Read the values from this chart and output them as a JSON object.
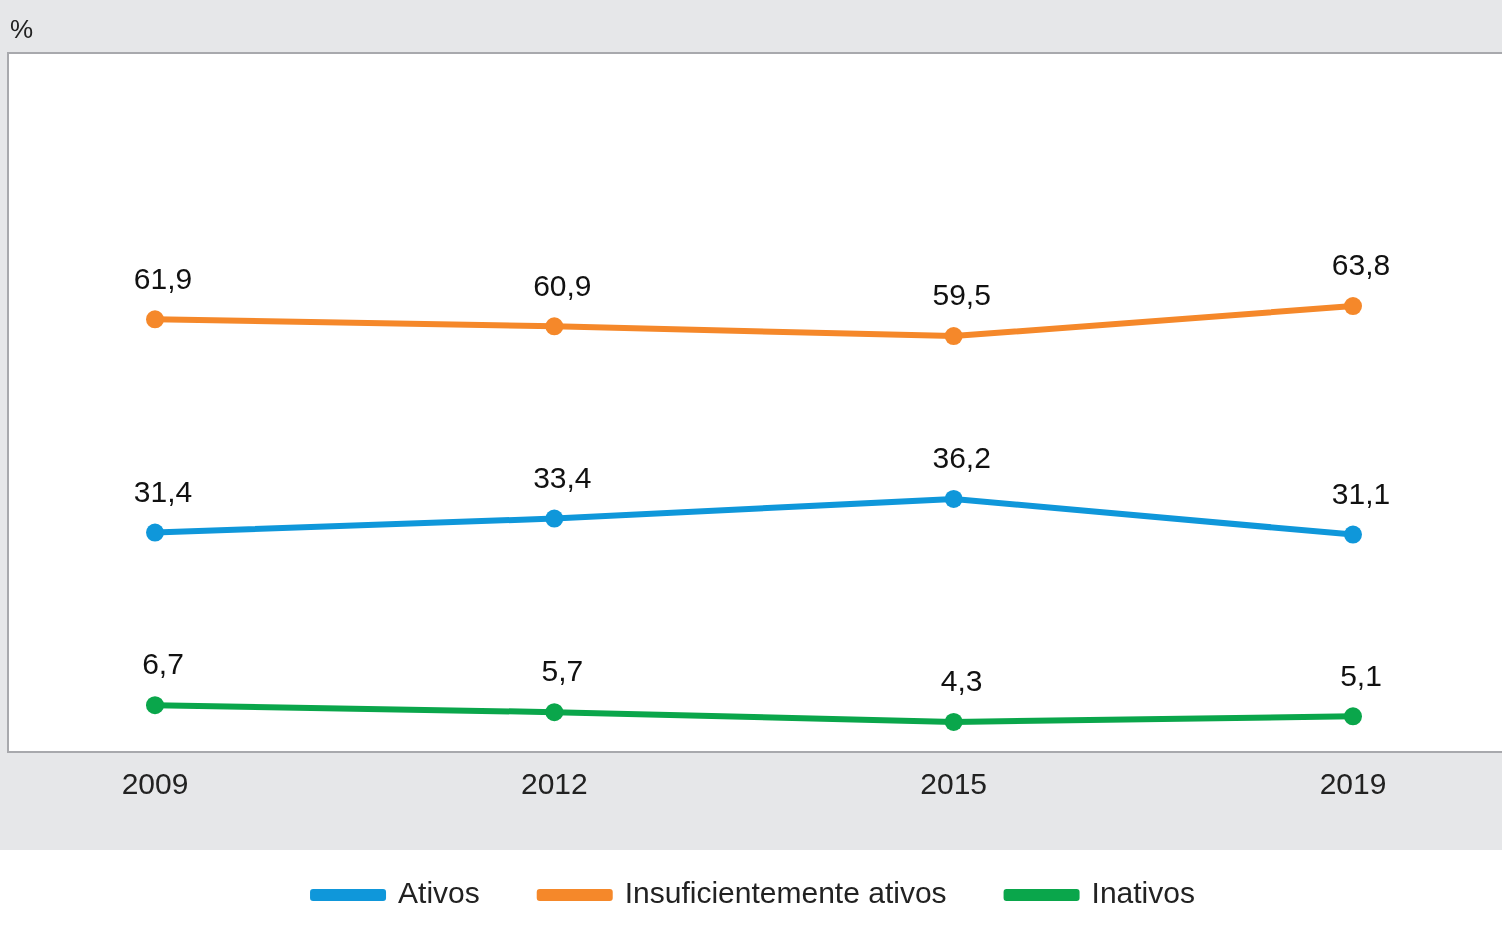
{
  "chart_data": {
    "type": "line",
    "ylabel": "%",
    "categories": [
      "2009",
      "2012",
      "2015",
      "2019"
    ],
    "ylim": [
      0,
      100
    ],
    "marker": "circle",
    "legend": "bottom",
    "grid": false,
    "series": [
      {
        "name": "Ativos",
        "color": "#0f97da",
        "values": [
          31.4,
          33.4,
          36.2,
          31.1
        ],
        "value_labels": [
          "31,4",
          "33,4",
          "36,2",
          "31,1"
        ]
      },
      {
        "name": "Insuficientemente ativos",
        "color": "#f5882a",
        "values": [
          61.9,
          60.9,
          59.5,
          63.8
        ],
        "value_labels": [
          "61,9",
          "60,9",
          "59,5",
          "63,8"
        ]
      },
      {
        "name": "Inativos",
        "color": "#0aa64b",
        "values": [
          6.7,
          5.7,
          4.3,
          5.1
        ],
        "value_labels": [
          "6,7",
          "5,7",
          "4,3",
          "5,1"
        ]
      }
    ]
  }
}
